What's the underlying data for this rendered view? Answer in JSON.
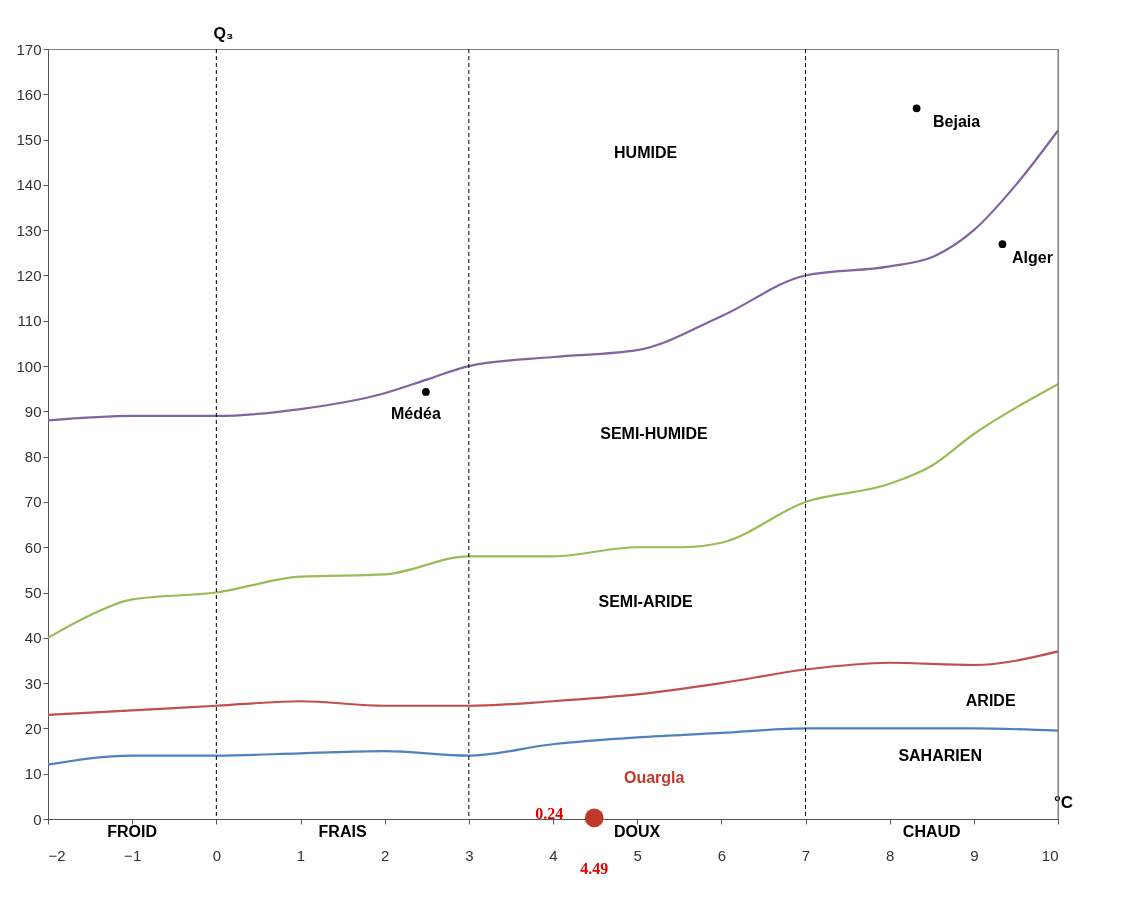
{
  "chart_data": {
    "type": "line",
    "ylabel": "Q₃",
    "xlabel": "°C",
    "xlim": [
      -2,
      10
    ],
    "xticks": [
      -2,
      -1,
      0,
      1,
      2,
      3,
      4,
      5,
      6,
      7,
      8,
      9,
      10
    ],
    "ylim": [
      0,
      170
    ],
    "yticks": [
      0,
      10,
      20,
      30,
      40,
      50,
      60,
      70,
      80,
      90,
      100,
      110,
      120,
      130,
      140,
      150,
      160,
      170
    ],
    "grid": false,
    "marker": "none",
    "line_style": "solid",
    "series": [
      {
        "color": "#8064a2",
        "x": [
          -2,
          -1,
          0,
          1,
          2,
          2.5,
          3,
          4,
          5,
          6,
          7,
          8,
          8.5,
          9,
          9.5,
          10
        ],
        "values": [
          88,
          89,
          89,
          90.5,
          94,
          97,
          100,
          102,
          103.5,
          111,
          120,
          122,
          124,
          130,
          140,
          152
        ]
      },
      {
        "color": "#9bbb59",
        "x": [
          -2,
          -1.5,
          -1,
          0,
          1,
          2,
          3,
          4,
          5,
          5.5,
          6,
          7,
          8,
          8.5,
          9,
          10
        ],
        "values": [
          40,
          45,
          48.5,
          50,
          53.5,
          54,
          58,
          58,
          60,
          60,
          61,
          70,
          74,
          78,
          85,
          96
        ]
      },
      {
        "color": "#c0504d",
        "x": [
          -2,
          -1,
          0,
          1,
          2,
          3,
          4,
          5,
          6,
          7,
          8,
          9,
          10
        ],
        "values": [
          23,
          24,
          25,
          26,
          25,
          25,
          26,
          27.5,
          30,
          33,
          34.5,
          34,
          37
        ]
      },
      {
        "color": "#4f81bd",
        "x": [
          -2,
          -1,
          0,
          1,
          2,
          3,
          4,
          5,
          6,
          7,
          8,
          9,
          10
        ],
        "values": [
          12,
          14,
          14,
          14.5,
          15,
          14,
          16.5,
          18,
          19,
          20,
          20,
          20,
          19.5
        ]
      },
      {
        "type": "scatter",
        "marker": "circle",
        "name": "Médéa",
        "color": "#000000",
        "x": [
          2.49
        ],
        "values": [
          94.3
        ]
      },
      {
        "type": "scatter",
        "marker": "circle",
        "name": "Bejaia",
        "color": "#000000",
        "x": [
          8.32
        ],
        "values": [
          156.9
        ]
      },
      {
        "type": "scatter",
        "marker": "circle",
        "name": "Alger",
        "color": "#000000",
        "x": [
          9.34
        ],
        "values": [
          126.9
        ]
      },
      {
        "type": "scatter",
        "marker": "circle",
        "name": "Ouargla",
        "color": "#c0392b",
        "x": [
          4.49
        ],
        "values": [
          0.24
        ],
        "value_labels": [
          "0.24"
        ]
      }
    ],
    "ref_lines": [
      {
        "axis": "x",
        "value": 0,
        "line_style": "dashed",
        "color": "#000000"
      },
      {
        "axis": "x",
        "value": 3,
        "line_style": "dashed",
        "color": "#000000"
      },
      {
        "axis": "x",
        "value": 7,
        "line_style": "dashed",
        "color": "#000000"
      },
      {
        "axis": "x",
        "value": 10,
        "line_style": "solid",
        "color": "#808080"
      }
    ],
    "annotations": [
      "HUMIDE",
      "SEMI-HUMIDE",
      "SEMI-ARIDE",
      "ARIDE",
      "SAHARIEN",
      {
        "text": "4.49",
        "x": 4.49,
        "y": 0.24
      },
      "FROID",
      "FRAIS",
      "DOUX",
      "CHAUD"
    ]
  }
}
